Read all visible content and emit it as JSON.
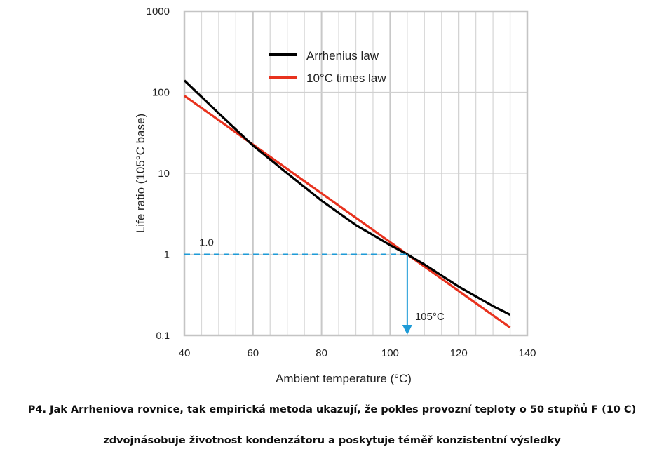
{
  "chart_data": {
    "type": "line",
    "xlabel": "Ambient temperature (°C)",
    "ylabel": "Life ratio (105°C base)",
    "xlim": [
      40,
      140
    ],
    "ylim": [
      0.1,
      1000
    ],
    "yscale": "log",
    "x_ticks": [
      40,
      60,
      80,
      100,
      120,
      140
    ],
    "y_ticks": [
      {
        "v": 0.1,
        "label": "0.1"
      },
      {
        "v": 1,
        "label": "1"
      },
      {
        "v": 10,
        "label": "10"
      },
      {
        "v": 100,
        "label": "100"
      },
      {
        "v": 1000,
        "label": "1000"
      }
    ],
    "grid": true,
    "legend_position": "top-center",
    "series": [
      {
        "name": "Arrhenius law",
        "color": "#000000",
        "x": [
          40,
          50,
          60,
          70,
          80,
          90,
          100,
          105,
          110,
          120,
          130,
          135
        ],
        "y": [
          140,
          55,
          22,
          10,
          4.6,
          2.3,
          1.3,
          1.0,
          0.75,
          0.4,
          0.23,
          0.18
        ]
      },
      {
        "name": "10°C times law",
        "color": "#e8321e",
        "x": [
          40,
          135
        ],
        "y": [
          90.5,
          0.125
        ]
      }
    ],
    "annotations": [
      {
        "text": "1.0",
        "type": "reference-line",
        "y": 1,
        "color": "#1e9bd7"
      },
      {
        "text": "105°C",
        "type": "arrow",
        "x": 105,
        "color": "#1e9bd7"
      }
    ]
  },
  "caption": {
    "line1": "P4. Jak Arrheniova rovnice, tak empirická metoda ukazují, že pokles provozní teploty o 50 stupňů F (10 C)",
    "line2": "zdvojnásobuje životnost kondenzátoru a poskytuje téměř konzistentní výsledky"
  }
}
